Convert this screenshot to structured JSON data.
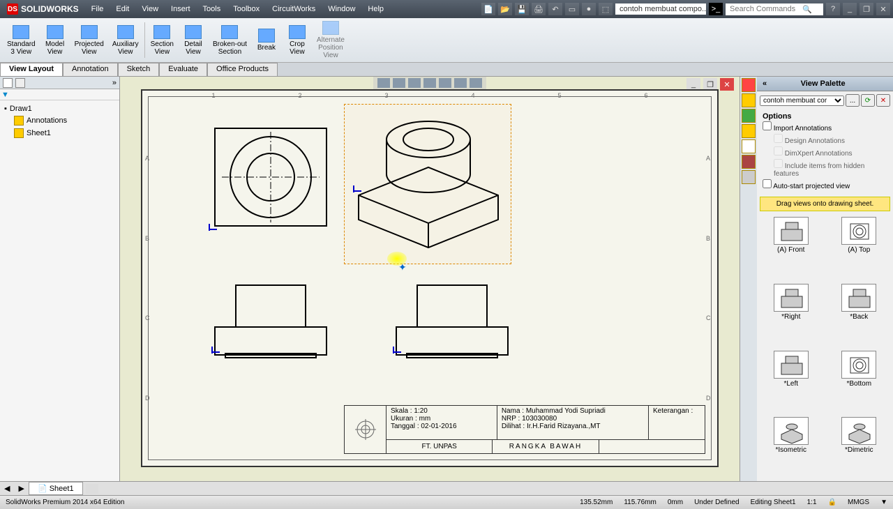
{
  "app": {
    "name": "SOLIDWORKS"
  },
  "menu": [
    "File",
    "Edit",
    "View",
    "Insert",
    "Tools",
    "Toolbox",
    "CircuitWorks",
    "Window",
    "Help"
  ],
  "doc_name": "contoh membuat compo...",
  "search_placeholder": "Search Commands",
  "ribbon": [
    {
      "label": "Standard\n3 View"
    },
    {
      "label": "Model\nView"
    },
    {
      "label": "Projected\nView"
    },
    {
      "label": "Auxiliary\nView"
    },
    {
      "label": "Section\nView",
      "sep": true
    },
    {
      "label": "Detail\nView"
    },
    {
      "label": "Broken-out\nSection"
    },
    {
      "label": "Break"
    },
    {
      "label": "Crop\nView"
    },
    {
      "label": "Alternate\nPosition\nView",
      "disabled": true
    }
  ],
  "tabs": [
    "View Layout",
    "Annotation",
    "Sketch",
    "Evaluate",
    "Office Products"
  ],
  "active_tab": "View Layout",
  "tree": {
    "root": "Draw1",
    "items": [
      "Annotations",
      "Sheet1"
    ]
  },
  "ruler_h": [
    "1",
    "2",
    "3",
    "4",
    "5",
    "6"
  ],
  "ruler_v": [
    "A",
    "B",
    "C",
    "D"
  ],
  "title_block": {
    "skala_l": "Skala",
    "skala_v": ": 1:20",
    "ukuran_l": "Ukuran",
    "ukuran_v": ": mm",
    "tanggal_l": "Tanggal",
    "tanggal_v": ": 02-01-2016",
    "nama_l": "Nama",
    "nama_v": ": Muhammad Yodi Supriadi",
    "nrp_l": "NRP",
    "nrp_v": ": 103030080",
    "dilihat_l": "Dilihat",
    "dilihat_v": ": Ir.H.Farid Rizayana.,MT",
    "ket_l": "Keterangan :",
    "org": "FT. UNPAS",
    "title": "RANGKA BAWAH"
  },
  "palette": {
    "header": "View Palette",
    "dropdown": "contoh membuat cor",
    "options_label": "Options",
    "import_ann": "Import Annotations",
    "design_ann": "Design Annotations",
    "dimxpert_ann": "DimXpert Annotations",
    "hidden_ann": "Include items from hidden features",
    "autostart": "Auto-start projected view",
    "hint": "Drag views onto drawing sheet.",
    "views": [
      "(A) Front",
      "(A) Top",
      "*Right",
      "*Back",
      "*Left",
      "*Bottom",
      "*Isometric",
      "*Dimetric"
    ]
  },
  "sheet_tab": "Sheet1",
  "status": {
    "left": "SolidWorks Premium 2014 x64 Edition",
    "coords": [
      "135.52mm",
      "115.76mm",
      "0mm"
    ],
    "state": "Under Defined",
    "editing": "Editing Sheet1",
    "scale": "1:1",
    "units": "MMGS"
  }
}
